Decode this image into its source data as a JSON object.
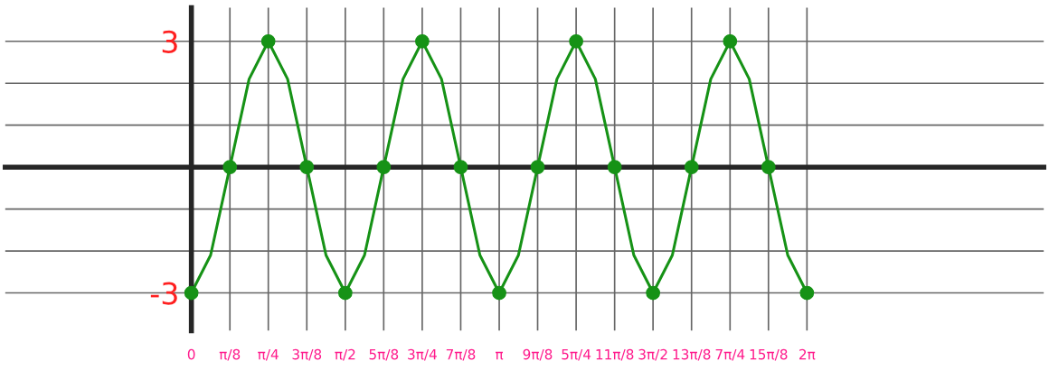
{
  "chart_data": {
    "type": "line",
    "xlim": [
      -1.9,
      8.7
    ],
    "ylim": [
      -3.9,
      3.8
    ],
    "xticks": [
      {
        "value": 0,
        "label": "0"
      },
      {
        "value": 0.393,
        "label": "π/8"
      },
      {
        "value": 0.785,
        "label": "π/4"
      },
      {
        "value": 1.178,
        "label": "3π/8"
      },
      {
        "value": 1.571,
        "label": "π/2"
      },
      {
        "value": 1.963,
        "label": "5π/8"
      },
      {
        "value": 2.356,
        "label": "3π/4"
      },
      {
        "value": 2.749,
        "label": "7π/8"
      },
      {
        "value": 3.142,
        "label": "π"
      },
      {
        "value": 3.534,
        "label": "9π/8"
      },
      {
        "value": 3.927,
        "label": "5π/4"
      },
      {
        "value": 4.32,
        "label": "11π/8"
      },
      {
        "value": 4.712,
        "label": "3π/2"
      },
      {
        "value": 5.105,
        "label": "13π/8"
      },
      {
        "value": 5.498,
        "label": "7π/4"
      },
      {
        "value": 5.89,
        "label": "15π/8"
      },
      {
        "value": 6.283,
        "label": "2π"
      }
    ],
    "yticks": [
      {
        "value": -3,
        "label": "-3"
      },
      {
        "value": -2,
        "label": null
      },
      {
        "value": -1,
        "label": null
      },
      {
        "value": 1,
        "label": null
      },
      {
        "value": 2,
        "label": null
      },
      {
        "value": 3,
        "label": "3"
      }
    ],
    "grid": true,
    "series": [
      {
        "color": "#169216",
        "x": [
          0,
          0.196,
          0.393,
          0.589,
          0.785,
          0.982,
          1.178,
          1.374,
          1.571,
          1.767,
          1.963,
          2.16,
          2.356,
          2.553,
          2.749,
          2.945,
          3.142,
          3.338,
          3.534,
          3.731,
          3.927,
          4.123,
          4.32,
          4.516,
          4.712,
          4.909,
          5.105,
          5.301,
          5.498,
          5.694,
          5.89,
          6.087,
          6.283
        ],
        "values": [
          -3,
          -2.1,
          0,
          2.1,
          3,
          2.1,
          0,
          -2.1,
          -3,
          -2.1,
          0,
          2.1,
          3,
          2.1,
          0,
          -2.1,
          -3,
          -2.1,
          0,
          2.1,
          3,
          2.1,
          0,
          -2.1,
          -3,
          -2.1,
          0,
          2.1,
          3,
          2.1,
          0,
          -2.1,
          -3
        ]
      },
      {
        "type": "scatter",
        "color": "#169216",
        "marker": "circle",
        "x": [
          0,
          0.393,
          0.785,
          1.178,
          1.571,
          1.963,
          2.356,
          2.749,
          3.142,
          3.534,
          3.927,
          4.32,
          4.712,
          5.105,
          5.498,
          5.89,
          6.283
        ],
        "values": [
          -3,
          0,
          3,
          0,
          -3,
          0,
          3,
          0,
          -3,
          0,
          3,
          0,
          -3,
          0,
          3,
          0,
          -3
        ]
      }
    ]
  }
}
